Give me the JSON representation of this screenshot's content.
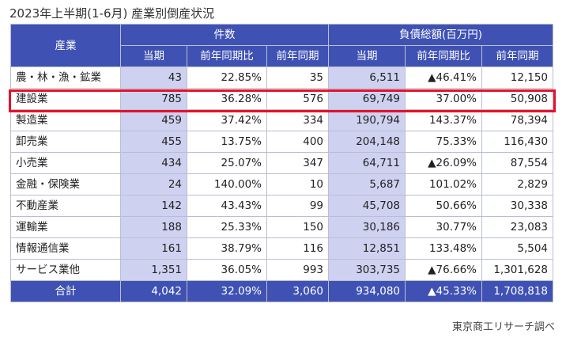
{
  "title": "2023年上半期(1-6月) 産業別倒産状況",
  "headers": {
    "industry": "産業",
    "count_group": "件数",
    "debt_group": "負債総額(百万円)",
    "sub": [
      "当期",
      "前年同期比",
      "前年同期",
      "当期",
      "前年同期比",
      "前年同期"
    ]
  },
  "rows": [
    {
      "industry": "農・林・漁・鉱業",
      "count": "43",
      "count_yoy": "22.85%",
      "count_prev": "35",
      "debt": "6,511",
      "debt_yoy": "▲46.41%",
      "debt_prev": "12,150"
    },
    {
      "industry": "建設業",
      "count": "785",
      "count_yoy": "36.28%",
      "count_prev": "576",
      "debt": "69,749",
      "debt_yoy": "37.00%",
      "debt_prev": "50,908"
    },
    {
      "industry": "製造業",
      "count": "459",
      "count_yoy": "37.42%",
      "count_prev": "334",
      "debt": "190,794",
      "debt_yoy": "143.37%",
      "debt_prev": "78,394"
    },
    {
      "industry": "卸売業",
      "count": "455",
      "count_yoy": "13.75%",
      "count_prev": "400",
      "debt": "204,148",
      "debt_yoy": "75.33%",
      "debt_prev": "116,430"
    },
    {
      "industry": "小売業",
      "count": "434",
      "count_yoy": "25.07%",
      "count_prev": "347",
      "debt": "64,711",
      "debt_yoy": "▲26.09%",
      "debt_prev": "87,554"
    },
    {
      "industry": "金融・保険業",
      "count": "24",
      "count_yoy": "140.00%",
      "count_prev": "10",
      "debt": "5,687",
      "debt_yoy": "101.02%",
      "debt_prev": "2,829"
    },
    {
      "industry": "不動産業",
      "count": "142",
      "count_yoy": "43.43%",
      "count_prev": "99",
      "debt": "45,708",
      "debt_yoy": "50.66%",
      "debt_prev": "30,338"
    },
    {
      "industry": "運輸業",
      "count": "188",
      "count_yoy": "25.33%",
      "count_prev": "150",
      "debt": "30,186",
      "debt_yoy": "30.77%",
      "debt_prev": "23,083"
    },
    {
      "industry": "情報通信業",
      "count": "161",
      "count_yoy": "38.79%",
      "count_prev": "116",
      "debt": "12,851",
      "debt_yoy": "133.48%",
      "debt_prev": "5,504"
    },
    {
      "industry": "サービス業他",
      "count": "1,351",
      "count_yoy": "36.05%",
      "count_prev": "993",
      "debt": "303,735",
      "debt_yoy": "▲76.66%",
      "debt_prev": "1,301,628"
    }
  ],
  "total": {
    "industry": "合計",
    "count": "4,042",
    "count_yoy": "32.09%",
    "count_prev": "3,060",
    "debt": "934,080",
    "debt_yoy": "▲45.33%",
    "debt_prev": "1,708,818"
  },
  "highlighted_row": "建設業",
  "source": "東京商工リサーチ調べ",
  "colors": {
    "header_bg": "#3f52b3",
    "header_text": "#ffffff",
    "shaded_cell": "#ced2f0",
    "highlight_border": "#e8102a"
  }
}
